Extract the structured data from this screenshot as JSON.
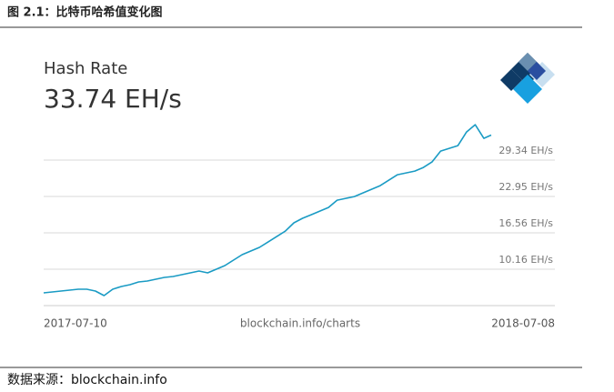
{
  "caption": "图 2.1：比特币哈希值变化图",
  "source": "数据来源：blockchain.info",
  "chart_data": {
    "type": "line",
    "title": "Hash Rate",
    "subtitle": "33.74 EH/s",
    "annotation": "blockchain.info/charts",
    "x": [
      "2017-07-10",
      "2017-07-17",
      "2017-07-24",
      "2017-07-31",
      "2017-08-07",
      "2017-08-14",
      "2017-08-21",
      "2017-08-28",
      "2017-09-04",
      "2017-09-11",
      "2017-09-18",
      "2017-09-25",
      "2017-10-02",
      "2017-10-09",
      "2017-10-16",
      "2017-10-23",
      "2017-10-30",
      "2017-11-06",
      "2017-11-13",
      "2017-11-20",
      "2017-11-27",
      "2017-12-04",
      "2017-12-11",
      "2017-12-18",
      "2017-12-25",
      "2018-01-01",
      "2018-01-08",
      "2018-01-15",
      "2018-01-22",
      "2018-01-29",
      "2018-02-05",
      "2018-02-12",
      "2018-02-19",
      "2018-02-26",
      "2018-03-05",
      "2018-03-12",
      "2018-03-19",
      "2018-03-26",
      "2018-04-02",
      "2018-04-09",
      "2018-04-16",
      "2018-04-23",
      "2018-04-30",
      "2018-05-07",
      "2018-05-14",
      "2018-05-21",
      "2018-05-28",
      "2018-06-04",
      "2018-06-11",
      "2018-06-18",
      "2018-06-25",
      "2018-07-02",
      "2018-07-08"
    ],
    "series": [
      {
        "name": "Hash Rate",
        "color": "#1a9bc4",
        "values": [
          6.01,
          6.17,
          6.33,
          6.49,
          6.65,
          6.65,
          6.33,
          5.53,
          6.65,
          7.12,
          7.44,
          7.92,
          8.08,
          8.4,
          8.72,
          8.88,
          9.2,
          9.52,
          9.84,
          9.52,
          10.16,
          10.8,
          11.76,
          12.72,
          13.36,
          14.0,
          14.95,
          15.91,
          16.87,
          18.31,
          19.11,
          19.74,
          20.38,
          21.02,
          22.3,
          22.62,
          22.94,
          23.58,
          24.22,
          24.86,
          25.82,
          26.77,
          27.09,
          27.41,
          28.05,
          29.01,
          30.93,
          31.41,
          31.89,
          34.28,
          35.56,
          33.16,
          33.74
        ]
      }
    ],
    "xlim": [
      "2017-07-10",
      "2018-07-08"
    ],
    "xticks": [
      "2017-07-10",
      "2018-07-08"
    ],
    "ylim": [
      3.77,
      36.7
    ],
    "yticks": [
      {
        "value": 10.16,
        "label": "10.16 EH/s"
      },
      {
        "value": 16.56,
        "label": "16.56 EH/s"
      },
      {
        "value": 22.95,
        "label": "22.95 EH/s"
      },
      {
        "value": 29.34,
        "label": "29.34 EH/s"
      }
    ],
    "grid": true
  }
}
